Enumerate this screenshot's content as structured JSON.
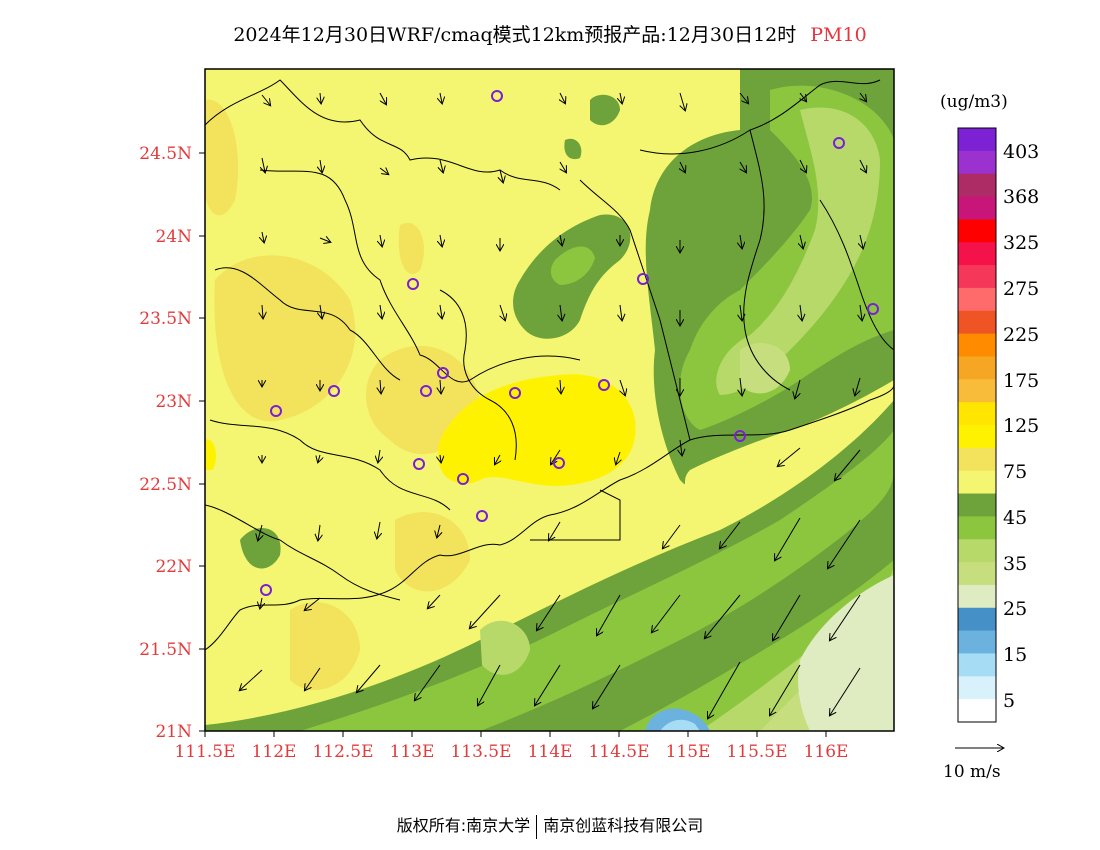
{
  "title": {
    "main": "2024年12月30日WRF/cmaq模式12km预报产品:12月30日12时",
    "pollutant": "PM10"
  },
  "axes": {
    "lat_labels": [
      "24.5N",
      "24N",
      "23.5N",
      "23N",
      "22.5N",
      "22N",
      "21.5N",
      "21N"
    ],
    "lon_labels": [
      "111.5E",
      "112E",
      "112.5E",
      "113E",
      "113.5E",
      "114E",
      "114.5E",
      "115E",
      "115.5E",
      "116E"
    ],
    "lat_range": [
      21.0,
      25.0
    ],
    "lon_range": [
      111.5,
      116.5
    ]
  },
  "legend": {
    "units": "(ug/m3)",
    "labels": [
      "403",
      "368",
      "325",
      "275",
      "225",
      "175",
      "125",
      "75",
      "45",
      "35",
      "25",
      "15",
      "5"
    ],
    "colors": [
      "#7c22d4",
      "#9b32cf",
      "#ad2c66",
      "#c8157a",
      "#ff0000",
      "#f5114a",
      "#f5385a",
      "#ff6b6b",
      "#ee5424",
      "#ff8c00",
      "#f5a623",
      "#f9bb3a",
      "#ffe500",
      "#fff200",
      "#f2e25c",
      "#f4f570",
      "#6da33a",
      "#8cc63f",
      "#b7d96a",
      "#c6de7e",
      "#dfebc1",
      "#4591c7",
      "#6cb2de",
      "#a7dcf5",
      "#d9f1fb",
      "#ffffff"
    ]
  },
  "wind": {
    "scale_label": "10 m/s"
  },
  "footer": {
    "owner": "版权所有:南京大学",
    "partner": "南京创蓝科技有限公司"
  }
}
